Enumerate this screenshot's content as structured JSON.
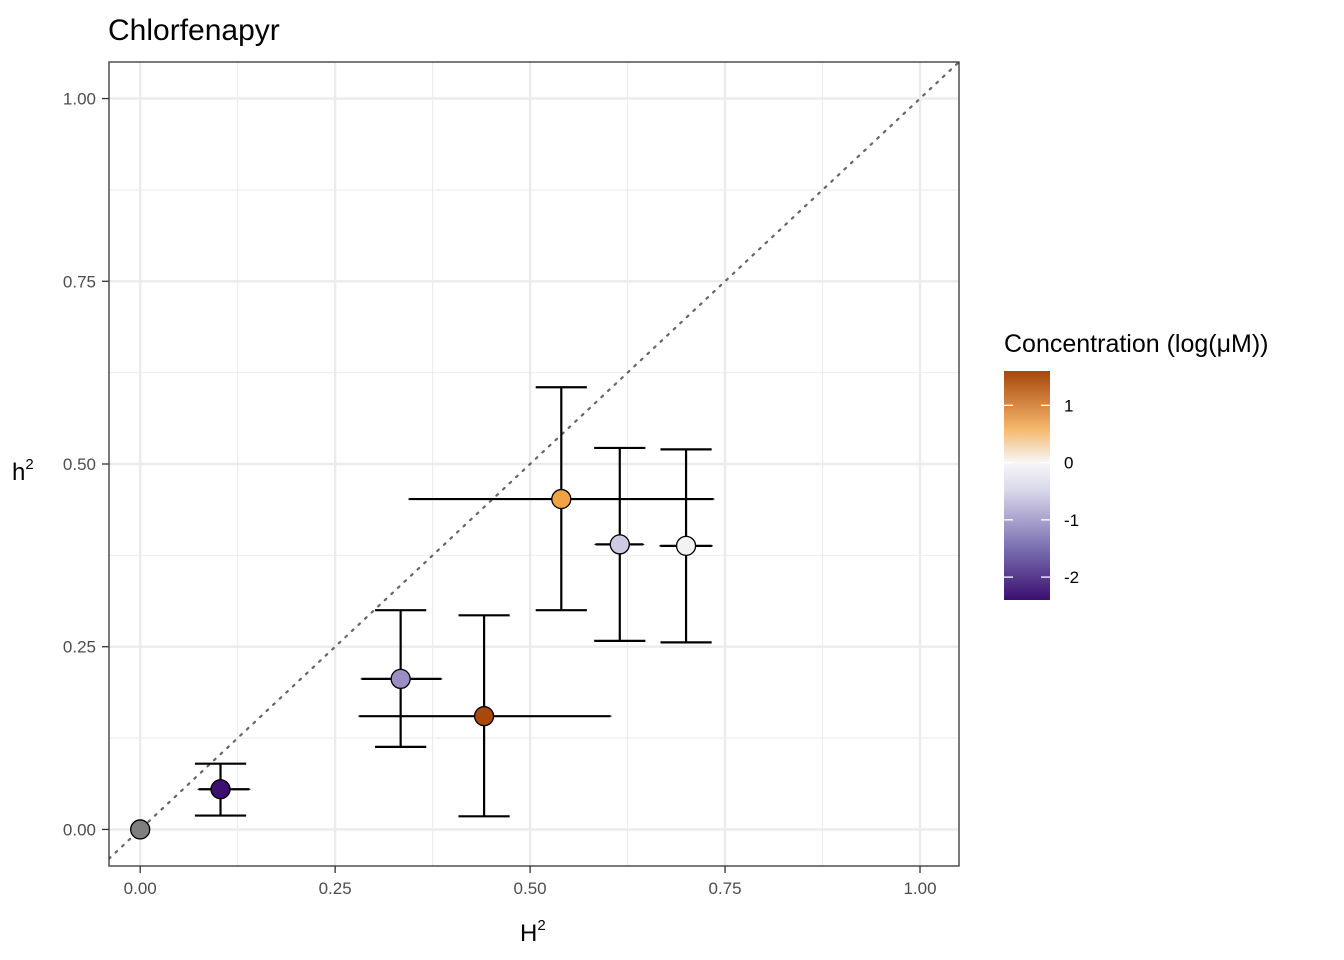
{
  "chart_data": {
    "type": "scatter",
    "title": "Chlorfenapyr",
    "xlabel": {
      "base": "H",
      "sup": "2"
    },
    "ylabel": {
      "base": "h",
      "sup": "2"
    },
    "xlim": [
      -0.04,
      1.05
    ],
    "ylim": [
      -0.05,
      1.05
    ],
    "x_ticks": [
      0.0,
      0.25,
      0.5,
      0.75,
      1.0
    ],
    "x_tick_labels": [
      "0.00",
      "0.25",
      "0.50",
      "0.75",
      "1.00"
    ],
    "y_ticks": [
      0.0,
      0.25,
      0.5,
      0.75,
      1.0
    ],
    "y_tick_labels": [
      "0.00",
      "0.25",
      "0.50",
      "0.75",
      "1.00"
    ],
    "grid": true,
    "reference_line": "y = x (dotted)",
    "points": [
      {
        "x": 0.0,
        "y": 0.0,
        "x_err": null,
        "y_err": null,
        "conc": null,
        "color": "#7f7f7f"
      },
      {
        "x": 0.103,
        "y": 0.055,
        "x_err": [
          0.075,
          0.14
        ],
        "y_err": [
          0.019,
          0.09
        ],
        "conc": -2.3,
        "color": "#3c0f70"
      },
      {
        "x": 0.334,
        "y": 0.206,
        "x_err": [
          0.284,
          0.386
        ],
        "y_err": [
          0.113,
          0.3
        ],
        "conc": -1.3,
        "color": "#9a8ec3"
      },
      {
        "x": 0.441,
        "y": 0.155,
        "x_err": [
          0.281,
          0.603
        ],
        "y_err": [
          0.018,
          0.293
        ],
        "conc": 1.7,
        "color": "#a8480c"
      },
      {
        "x": 0.54,
        "y": 0.452,
        "x_err": [
          0.345,
          0.735
        ],
        "y_err": [
          0.3,
          0.605
        ],
        "conc": 0.7,
        "color": "#f1a243"
      },
      {
        "x": 0.615,
        "y": 0.39,
        "x_err": [
          0.584,
          0.645
        ],
        "y_err": [
          0.258,
          0.522
        ],
        "conc": -0.8,
        "color": "#cdcbe3"
      },
      {
        "x": 0.7,
        "y": 0.388,
        "x_err": [
          0.667,
          0.733
        ],
        "y_err": [
          0.256,
          0.52
        ],
        "conc": -0.1,
        "color": "#f3f3f5"
      }
    ],
    "legend": {
      "title": "Concentration (log(μM))",
      "placement": "right",
      "range": [
        -2.4,
        1.6
      ],
      "ticks": [
        1,
        0,
        -1,
        -2
      ],
      "tick_labels": [
        "1",
        "0",
        "-1",
        "-2"
      ],
      "gradient": [
        {
          "value": -2.4,
          "color": "#3b0f70"
        },
        {
          "value": -1.5,
          "color": "#7a6eb0"
        },
        {
          "value": -0.5,
          "color": "#d8d6ea"
        },
        {
          "value": 0.0,
          "color": "#f7f7f7"
        },
        {
          "value": 0.6,
          "color": "#f5b66a"
        },
        {
          "value": 1.6,
          "color": "#a6470b"
        }
      ]
    }
  }
}
